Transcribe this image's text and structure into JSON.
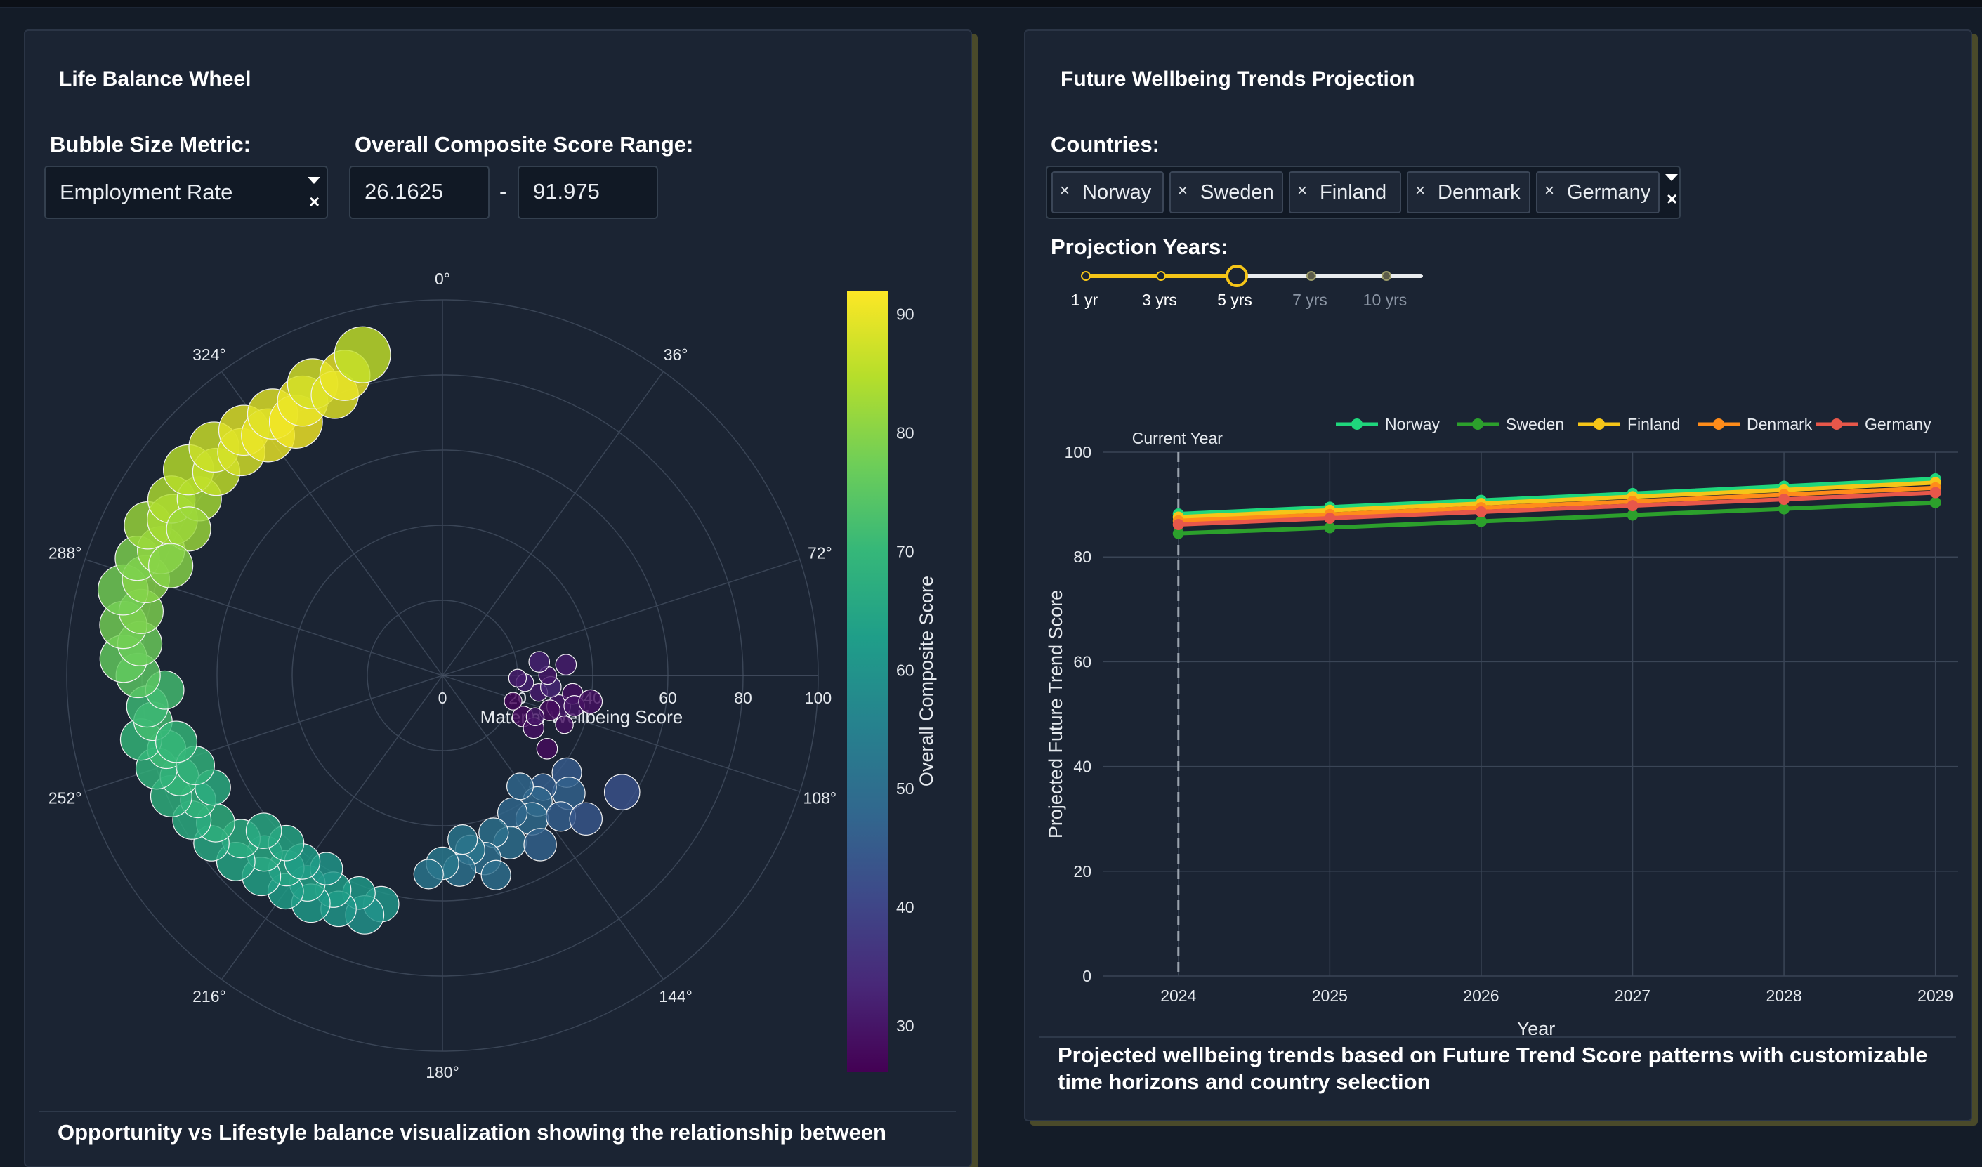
{
  "left_panel": {
    "title": "Life Balance Wheel",
    "bubble_metric_label": "Bubble Size Metric:",
    "bubble_metric_value": "Employment Rate",
    "range_label": "Overall Composite Score Range:",
    "range_min": "26.1625",
    "range_max": "91.975",
    "range_separator": "-",
    "caption": "Opportunity vs Lifestyle balance visualization showing the relationship between"
  },
  "right_panel": {
    "title": "Future Wellbeing Trends Projection",
    "countries_label": "Countries:",
    "selected_countries": [
      "Norway",
      "Sweden",
      "Finland",
      "Denmark",
      "Germany"
    ],
    "projection_label": "Projection Years:",
    "slider_marks": [
      "1 yr",
      "3 yrs",
      "5 yrs",
      "7 yrs",
      "10 yrs"
    ],
    "slider_value": "5 yrs",
    "caption": "Projected wellbeing trends based on Future Trend Score patterns with customizable time horizons and country selection"
  },
  "colors": {
    "accent": "#fde725",
    "panel_bg": "#1b2433",
    "page_bg": "#141c28"
  },
  "chart_data": [
    {
      "type": "scatter",
      "subtype": "polar-bubble",
      "radial_axis_title": "Material Wellbeing Score",
      "radial_range": [
        0,
        100
      ],
      "radial_ticks": [
        "0",
        "20",
        "40",
        "60",
        "80",
        "100"
      ],
      "angular_ticks": [
        "0°",
        "36°",
        "72°",
        "108°",
        "144°",
        "180°",
        "216°",
        "252°",
        "288°",
        "324°"
      ],
      "colorbar_title": "Overall Composite Score",
      "colorbar_ticks": [
        "30",
        "40",
        "50",
        "60",
        "70",
        "80",
        "90"
      ],
      "colorbar_range": [
        26.1625,
        91.975
      ],
      "colorscale": "viridis",
      "points": [
        {
          "theta": 117,
          "r": 24,
          "c": 28,
          "s": 7
        },
        {
          "theta": 120,
          "r": 28,
          "c": 29,
          "s": 7
        },
        {
          "theta": 110,
          "r": 20,
          "c": 27,
          "s": 6
        },
        {
          "theta": 105,
          "r": 32,
          "c": 30,
          "s": 8
        },
        {
          "theta": 100,
          "r": 26,
          "c": 31,
          "s": 6
        },
        {
          "theta": 98,
          "r": 35,
          "c": 29,
          "s": 7
        },
        {
          "theta": 95,
          "r": 22,
          "c": 32,
          "s": 6
        },
        {
          "theta": 108,
          "r": 30,
          "c": 28,
          "s": 7
        },
        {
          "theta": 103,
          "r": 36,
          "c": 30,
          "s": 7
        },
        {
          "theta": 92,
          "r": 20,
          "c": 31,
          "s": 6
        },
        {
          "theta": 112,
          "r": 35,
          "c": 29,
          "s": 6
        },
        {
          "theta": 96,
          "r": 29,
          "c": 33,
          "s": 7
        },
        {
          "theta": 125,
          "r": 34,
          "c": 28,
          "s": 7
        },
        {
          "theta": 90,
          "r": 28,
          "c": 30,
          "s": 6
        },
        {
          "theta": 82,
          "r": 26,
          "c": 32,
          "s": 7
        },
        {
          "theta": 85,
          "r": 33,
          "c": 31,
          "s": 7
        },
        {
          "theta": 100,
          "r": 40,
          "c": 29,
          "s": 8
        },
        {
          "theta": 114,
          "r": 27,
          "c": 30,
          "s": 6
        },
        {
          "theta": 128,
          "r": 42,
          "c": 45,
          "s": 10
        },
        {
          "theta": 133,
          "r": 46,
          "c": 47,
          "s": 11
        },
        {
          "theta": 138,
          "r": 40,
          "c": 46,
          "s": 9
        },
        {
          "theta": 143,
          "r": 42,
          "c": 48,
          "s": 10
        },
        {
          "theta": 148,
          "r": 45,
          "c": 49,
          "s": 11
        },
        {
          "theta": 153,
          "r": 41,
          "c": 48,
          "s": 10
        },
        {
          "theta": 158,
          "r": 48,
          "c": 50,
          "s": 11
        },
        {
          "theta": 162,
          "r": 44,
          "c": 51,
          "s": 10
        },
        {
          "theta": 167,
          "r": 50,
          "c": 50,
          "s": 11
        },
        {
          "theta": 171,
          "r": 47,
          "c": 52,
          "s": 10
        },
        {
          "theta": 175,
          "r": 52,
          "c": 51,
          "s": 11
        },
        {
          "theta": 180,
          "r": 50,
          "c": 53,
          "s": 11
        },
        {
          "theta": 184,
          "r": 53,
          "c": 52,
          "s": 10
        },
        {
          "theta": 140,
          "r": 49,
          "c": 46,
          "s": 10
        },
        {
          "theta": 150,
          "r": 52,
          "c": 47,
          "s": 11
        },
        {
          "theta": 135,
          "r": 54,
          "c": 44,
          "s": 11
        },
        {
          "theta": 123,
          "r": 57,
          "c": 43,
          "s": 12
        },
        {
          "theta": 165,
          "r": 55,
          "c": 50,
          "s": 10
        },
        {
          "theta": 145,
          "r": 36,
          "c": 48,
          "s": 9
        },
        {
          "theta": 173,
          "r": 44,
          "c": 52,
          "s": 10
        },
        {
          "theta": 195,
          "r": 63,
          "c": 61,
          "s": 12
        },
        {
          "theta": 198,
          "r": 67,
          "c": 60,
          "s": 13
        },
        {
          "theta": 201,
          "r": 62,
          "c": 62,
          "s": 11
        },
        {
          "theta": 204,
          "r": 68,
          "c": 61,
          "s": 12
        },
        {
          "theta": 207,
          "r": 64,
          "c": 63,
          "s": 12
        },
        {
          "theta": 210,
          "r": 70,
          "c": 62,
          "s": 13
        },
        {
          "theta": 213,
          "r": 66,
          "c": 64,
          "s": 12
        },
        {
          "theta": 216,
          "r": 71,
          "c": 63,
          "s": 12
        },
        {
          "theta": 219,
          "r": 66,
          "c": 65,
          "s": 12
        },
        {
          "theta": 222,
          "r": 72,
          "c": 64,
          "s": 13
        },
        {
          "theta": 225,
          "r": 67,
          "c": 66,
          "s": 12
        },
        {
          "theta": 228,
          "r": 74,
          "c": 65,
          "s": 13
        },
        {
          "theta": 231,
          "r": 69,
          "c": 67,
          "s": 13
        },
        {
          "theta": 234,
          "r": 76,
          "c": 66,
          "s": 12
        },
        {
          "theta": 237,
          "r": 72,
          "c": 68,
          "s": 13
        },
        {
          "theta": 240,
          "r": 77,
          "c": 67,
          "s": 13
        },
        {
          "theta": 243,
          "r": 73,
          "c": 69,
          "s": 12
        },
        {
          "theta": 246,
          "r": 79,
          "c": 68,
          "s": 14
        },
        {
          "theta": 249,
          "r": 75,
          "c": 70,
          "s": 13
        },
        {
          "theta": 252,
          "r": 80,
          "c": 69,
          "s": 14
        },
        {
          "theta": 255,
          "r": 76,
          "c": 71,
          "s": 13
        },
        {
          "theta": 258,
          "r": 82,
          "c": 70,
          "s": 14
        },
        {
          "theta": 261,
          "r": 78,
          "c": 72,
          "s": 13
        },
        {
          "theta": 264,
          "r": 79,
          "c": 71,
          "s": 14
        },
        {
          "theta": 267,
          "r": 74,
          "c": 72,
          "s": 13
        },
        {
          "theta": 211,
          "r": 60,
          "c": 61,
          "s": 11
        },
        {
          "theta": 217,
          "r": 62,
          "c": 63,
          "s": 12
        },
        {
          "theta": 223,
          "r": 61,
          "c": 65,
          "s": 12
        },
        {
          "theta": 229,
          "r": 63,
          "c": 66,
          "s": 12
        },
        {
          "theta": 244,
          "r": 68,
          "c": 67,
          "s": 12
        },
        {
          "theta": 250,
          "r": 70,
          "c": 69,
          "s": 13
        },
        {
          "theta": 256,
          "r": 73,
          "c": 70,
          "s": 14
        },
        {
          "theta": 270,
          "r": 81,
          "c": 75,
          "s": 15
        },
        {
          "theta": 273,
          "r": 85,
          "c": 76,
          "s": 16
        },
        {
          "theta": 276,
          "r": 81,
          "c": 77,
          "s": 15
        },
        {
          "theta": 279,
          "r": 86,
          "c": 78,
          "s": 16
        },
        {
          "theta": 282,
          "r": 82,
          "c": 79,
          "s": 15
        },
        {
          "theta": 285,
          "r": 88,
          "c": 78,
          "s": 17
        },
        {
          "theta": 288,
          "r": 83,
          "c": 80,
          "s": 16
        },
        {
          "theta": 291,
          "r": 87,
          "c": 79,
          "s": 15
        },
        {
          "theta": 294,
          "r": 82,
          "c": 81,
          "s": 16
        },
        {
          "theta": 297,
          "r": 88,
          "c": 82,
          "s": 16
        },
        {
          "theta": 300,
          "r": 83,
          "c": 83,
          "s": 17
        },
        {
          "theta": 303,
          "r": 86,
          "c": 84,
          "s": 16
        },
        {
          "theta": 306,
          "r": 80,
          "c": 83,
          "s": 15
        },
        {
          "theta": 309,
          "r": 87,
          "c": 85,
          "s": 17
        },
        {
          "theta": 312,
          "r": 81,
          "c": 86,
          "s": 16
        },
        {
          "theta": 315,
          "r": 86,
          "c": 87,
          "s": 17
        },
        {
          "theta": 318,
          "r": 80,
          "c": 88,
          "s": 16
        },
        {
          "theta": 321,
          "r": 84,
          "c": 89,
          "s": 17
        },
        {
          "theta": 324,
          "r": 79,
          "c": 90,
          "s": 18
        },
        {
          "theta": 327,
          "r": 83,
          "c": 89,
          "s": 17
        },
        {
          "theta": 330,
          "r": 78,
          "c": 91,
          "s": 18
        },
        {
          "theta": 333,
          "r": 82,
          "c": 90,
          "s": 17
        },
        {
          "theta": 336,
          "r": 85,
          "c": 88,
          "s": 17
        },
        {
          "theta": 339,
          "r": 80,
          "c": 89,
          "s": 16
        },
        {
          "theta": 342,
          "r": 84,
          "c": 90,
          "s": 17
        },
        {
          "theta": 346,
          "r": 88,
          "c": 86,
          "s": 19
        },
        {
          "theta": 300,
          "r": 78,
          "c": 82,
          "s": 15
        },
        {
          "theta": 292,
          "r": 78,
          "c": 80,
          "s": 15
        }
      ]
    },
    {
      "type": "line",
      "x": [
        2024,
        2025,
        2026,
        2027,
        2028,
        2029
      ],
      "xlabel": "Year",
      "ylabel": "Projected Future Trend Score",
      "ylim": [
        0,
        100
      ],
      "yticks": [
        0,
        20,
        40,
        60,
        80,
        100
      ],
      "annotation": "Current Year",
      "annotation_x": 2024,
      "legend_position": "top-right",
      "series": [
        {
          "name": "Norway",
          "color": "#1fd67c",
          "values": [
            88.2,
            89.5,
            90.8,
            92.1,
            93.5,
            94.9
          ]
        },
        {
          "name": "Sweden",
          "color": "#2ca02c",
          "values": [
            84.5,
            85.6,
            86.8,
            88.0,
            89.2,
            90.4
          ]
        },
        {
          "name": "Finland",
          "color": "#f5c518",
          "values": [
            87.6,
            88.9,
            90.2,
            91.5,
            92.8,
            94.2
          ]
        },
        {
          "name": "Denmark",
          "color": "#ff8c1a",
          "values": [
            86.9,
            88.1,
            89.4,
            90.6,
            91.9,
            93.2
          ]
        },
        {
          "name": "Germany",
          "color": "#e8574a",
          "values": [
            86.2,
            87.4,
            88.6,
            89.8,
            91.0,
            92.3
          ]
        }
      ]
    }
  ]
}
